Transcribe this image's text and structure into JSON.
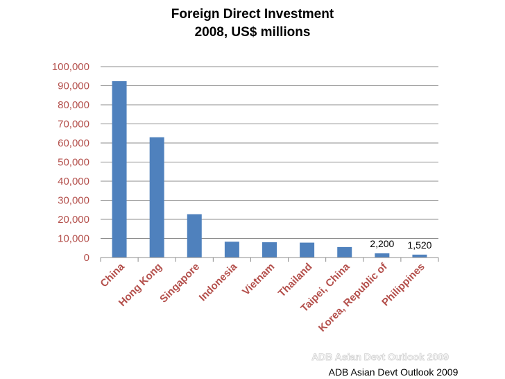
{
  "chart_data": {
    "type": "bar",
    "title": [
      "Foreign Direct Investment",
      "2008, US$ millions"
    ],
    "categories": [
      "China",
      "Hong Kong",
      "Singapore",
      "Indonesia",
      "Vietnam",
      "Thailand",
      "Taipei, China",
      "Korea, Republic of",
      "Philippines"
    ],
    "values": [
      92400,
      63000,
      22700,
      8300,
      8000,
      7800,
      5500,
      2200,
      1520
    ],
    "data_labels": [
      {
        "index": 7,
        "text": "2,200"
      },
      {
        "index": 8,
        "text": "1,520"
      }
    ],
    "ylim": [
      0,
      100000
    ],
    "yticks": [
      "0",
      "10,000",
      "20,000",
      "30,000",
      "40,000",
      "50,000",
      "60,000",
      "70,000",
      "80,000",
      "90,000",
      "100,000"
    ],
    "xlabel": "",
    "ylabel": "",
    "grid": true,
    "colors": {
      "bar": "#4f81bd",
      "tick_text": "#b4504c",
      "grid": "#8c8c8c"
    }
  },
  "watermark": "ADB Asian Devt Outlook 2009",
  "source": "ADB Asian Devt Outlook 2009"
}
